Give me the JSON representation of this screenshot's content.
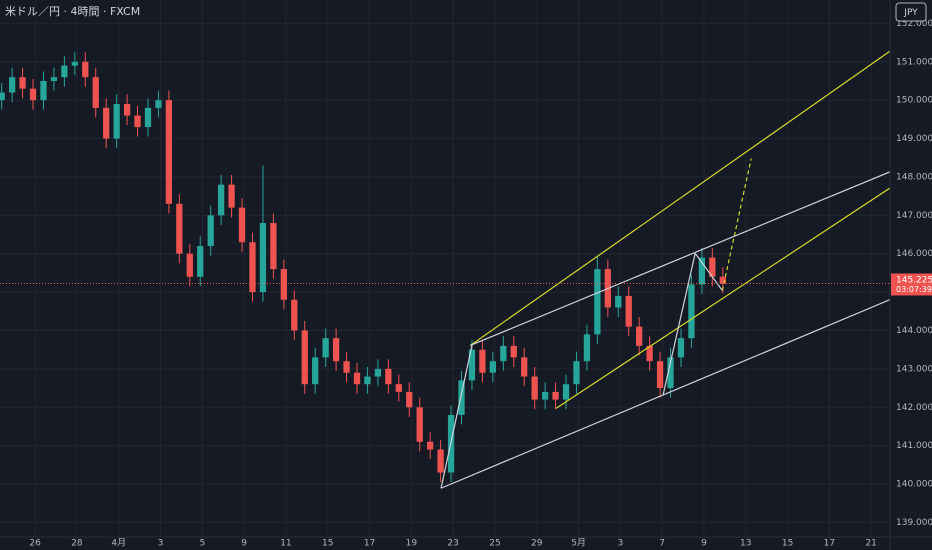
{
  "chart_data": {
    "type": "candlestick",
    "title": "米ドル／円 · 4時間 · FXCM",
    "currency": "JPY",
    "last_price": 145.225,
    "last_price_label": "145.225",
    "countdown": "03:07:39",
    "up_color": "#26a69a",
    "down_color": "#ef5350",
    "grid": true,
    "xlim": [
      -0.84,
      20.45
    ],
    "ylim": [
      138.62,
      152.61
    ],
    "xticks": [
      {
        "value": 0,
        "label": "26"
      },
      {
        "value": 1,
        "label": "28"
      },
      {
        "value": 2,
        "label": "4月"
      },
      {
        "value": 3,
        "label": "3"
      },
      {
        "value": 4,
        "label": "5"
      },
      {
        "value": 5,
        "label": "9"
      },
      {
        "value": 6,
        "label": "11"
      },
      {
        "value": 7,
        "label": "15"
      },
      {
        "value": 8,
        "label": "17"
      },
      {
        "value": 9,
        "label": "19"
      },
      {
        "value": 10,
        "label": "23"
      },
      {
        "value": 11,
        "label": "25"
      },
      {
        "value": 12,
        "label": "29"
      },
      {
        "value": 13,
        "label": "5月"
      },
      {
        "value": 14,
        "label": "3"
      },
      {
        "value": 15,
        "label": "7"
      },
      {
        "value": 16,
        "label": "9"
      },
      {
        "value": 17,
        "label": "13"
      },
      {
        "value": 18,
        "label": "15"
      },
      {
        "value": 19,
        "label": "17"
      },
      {
        "value": 20,
        "label": "21"
      }
    ],
    "yticks": [
      {
        "value": 139,
        "label": "139.000"
      },
      {
        "value": 140,
        "label": "140.000"
      },
      {
        "value": 141,
        "label": "141.000"
      },
      {
        "value": 142,
        "label": "142.000"
      },
      {
        "value": 143,
        "label": "143.000"
      },
      {
        "value": 144,
        "label": "144.000"
      },
      {
        "value": 145,
        "label": "145.000"
      },
      {
        "value": 146,
        "label": "146.000"
      },
      {
        "value": 147,
        "label": "147.000"
      },
      {
        "value": 148,
        "label": "148.000"
      },
      {
        "value": 149,
        "label": "149.000"
      },
      {
        "value": 150,
        "label": "150.000"
      },
      {
        "value": 151,
        "label": "151.000"
      },
      {
        "value": 152,
        "label": "152.000"
      }
    ],
    "x": [
      -0.8,
      -0.55,
      -0.3,
      -0.05,
      0.2,
      0.45,
      0.7,
      0.95,
      1.2,
      1.45,
      1.7,
      1.95,
      2.2,
      2.45,
      2.7,
      2.95,
      3.2,
      3.45,
      3.7,
      3.95,
      4.2,
      4.45,
      4.7,
      4.95,
      5.2,
      5.45,
      5.7,
      5.95,
      6.2,
      6.45,
      6.7,
      6.95,
      7.2,
      7.45,
      7.7,
      7.95,
      8.2,
      8.45,
      8.7,
      8.95,
      9.2,
      9.45,
      9.7,
      9.95,
      10.2,
      10.45,
      10.7,
      10.95,
      11.2,
      11.45,
      11.7,
      11.95,
      12.2,
      12.45,
      12.7,
      12.95,
      13.2,
      13.45,
      13.7,
      13.95,
      14.2,
      14.45,
      14.7,
      14.95,
      15.2,
      15.45,
      15.7,
      15.95,
      16.2,
      16.45
    ],
    "open": [
      150.0,
      150.2,
      150.6,
      150.3,
      150.0,
      150.5,
      150.6,
      150.9,
      151.0,
      150.6,
      149.8,
      149.0,
      149.9,
      149.6,
      149.3,
      149.8,
      150.0,
      147.3,
      146.0,
      145.4,
      146.2,
      147.0,
      147.8,
      147.2,
      146.3,
      145.0,
      146.8,
      145.6,
      144.8,
      144.0,
      142.6,
      143.3,
      143.8,
      143.2,
      142.9,
      142.6,
      142.8,
      143.0,
      142.6,
      142.4,
      142.0,
      141.1,
      140.9,
      140.3,
      141.8,
      142.7,
      143.5,
      142.9,
      143.2,
      143.6,
      143.3,
      142.8,
      142.2,
      142.4,
      142.2,
      142.6,
      143.2,
      143.9,
      145.6,
      144.6,
      144.9,
      144.1,
      143.6,
      143.2,
      142.5,
      143.3,
      143.8,
      145.2,
      145.9,
      145.4
    ],
    "high": [
      150.45,
      150.85,
      150.85,
      150.55,
      150.75,
      150.85,
      151.15,
      151.25,
      151.25,
      150.85,
      150.05,
      150.15,
      150.15,
      149.85,
      150.05,
      150.25,
      150.25,
      147.55,
      146.25,
      146.45,
      147.25,
      148.05,
      148.05,
      147.45,
      146.55,
      148.3,
      147.05,
      145.85,
      145.05,
      144.25,
      143.55,
      144.05,
      144.05,
      143.45,
      143.15,
      143.05,
      143.25,
      143.25,
      142.85,
      142.65,
      142.25,
      141.35,
      141.15,
      142.05,
      142.95,
      143.75,
      143.75,
      143.45,
      143.85,
      143.85,
      143.55,
      143.05,
      142.65,
      142.65,
      142.85,
      143.45,
      144.15,
      145.95,
      145.85,
      145.15,
      145.15,
      144.35,
      143.85,
      143.45,
      143.55,
      144.05,
      145.45,
      146.15,
      146.15,
      145.65
    ],
    "low": [
      149.75,
      149.95,
      150.05,
      149.75,
      149.75,
      150.25,
      150.35,
      150.65,
      150.35,
      149.55,
      148.75,
      148.75,
      149.35,
      149.05,
      149.05,
      149.55,
      147.05,
      145.75,
      145.15,
      145.15,
      145.95,
      146.75,
      146.95,
      146.05,
      144.75,
      144.75,
      145.35,
      144.55,
      143.75,
      142.35,
      142.35,
      143.05,
      142.95,
      142.65,
      142.35,
      142.35,
      142.55,
      142.35,
      142.15,
      141.75,
      140.85,
      140.65,
      140.05,
      140.05,
      141.55,
      142.45,
      142.65,
      142.65,
      142.95,
      143.05,
      142.55,
      141.95,
      141.95,
      141.95,
      141.95,
      142.35,
      142.95,
      143.65,
      144.35,
      144.35,
      143.85,
      143.35,
      142.95,
      142.25,
      142.25,
      143.05,
      143.55,
      144.95,
      145.15,
      144.97
    ],
    "close": [
      150.2,
      150.6,
      150.3,
      150.0,
      150.5,
      150.6,
      150.9,
      151.0,
      150.6,
      149.8,
      149.0,
      149.9,
      149.6,
      149.3,
      149.8,
      150.0,
      147.3,
      146.0,
      145.4,
      146.2,
      147.0,
      147.8,
      147.2,
      146.3,
      145.0,
      146.8,
      145.6,
      144.8,
      144.0,
      142.6,
      143.3,
      143.8,
      143.2,
      142.9,
      142.6,
      142.8,
      143.0,
      142.6,
      142.4,
      142.0,
      141.1,
      140.9,
      140.3,
      141.8,
      142.7,
      143.5,
      142.9,
      143.2,
      143.6,
      143.3,
      142.8,
      142.2,
      142.4,
      142.2,
      142.6,
      143.2,
      143.9,
      145.6,
      144.6,
      144.9,
      144.1,
      143.6,
      143.2,
      142.5,
      143.3,
      143.8,
      145.2,
      145.9,
      145.4,
      145.22
    ],
    "drawings": [
      {
        "color": "#d4d92a",
        "dashed": false,
        "x": [
          10.41,
          20.53
        ],
        "y": [
          143.61,
          151.34
        ]
      },
      {
        "color": "#d1d4dc",
        "dashed": false,
        "x": [
          10.41,
          20.53
        ],
        "y": [
          143.61,
          148.17
        ]
      },
      {
        "color": "#d4d92a",
        "dashed": false,
        "x": [
          12.46,
          20.53
        ],
        "y": [
          141.97,
          147.77
        ]
      },
      {
        "color": "#d1d4dc",
        "dashed": false,
        "x": [
          9.71,
          20.53
        ],
        "y": [
          139.89,
          144.84
        ]
      },
      {
        "color": "#d1d4dc",
        "dashed": false,
        "x": [
          9.71,
          10.45
        ],
        "y": [
          139.89,
          143.61
        ]
      },
      {
        "color": "#d1d4dc",
        "dashed": false,
        "x": [
          15.02,
          15.79
        ],
        "y": [
          142.31,
          146.01
        ]
      },
      {
        "color": "#d1d4dc",
        "dashed": false,
        "x": [
          15.79,
          16.44
        ],
        "y": [
          146.01,
          145.04
        ]
      },
      {
        "color": "#d4d92a",
        "dashed": true,
        "x": [
          16.44,
          17.13
        ],
        "y": [
          145.04,
          148.48
        ]
      }
    ]
  }
}
